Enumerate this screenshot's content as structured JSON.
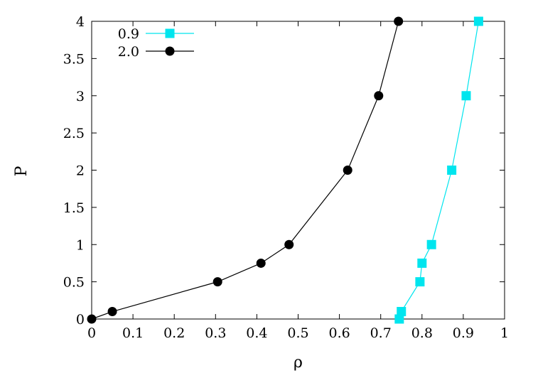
{
  "chart_data": {
    "type": "line",
    "xlabel": "ρ",
    "ylabel": "P",
    "xlim": [
      0,
      1
    ],
    "ylim": [
      0,
      4
    ],
    "x_ticks": [
      "0",
      "0.1",
      "0.2",
      "0.3",
      "0.4",
      "0.5",
      "0.6",
      "0.7",
      "0.8",
      "0.9",
      "1"
    ],
    "y_ticks": [
      "0",
      "0.5",
      "1",
      "1.5",
      "2",
      "2.5",
      "3",
      "3.5",
      "4"
    ],
    "grid": false,
    "legend_position": "top-left",
    "series": [
      {
        "name": "0.9",
        "color": "#00e5ee",
        "marker": "square",
        "x": [
          0.745,
          0.75,
          0.795,
          0.8,
          0.823,
          0.872,
          0.907,
          0.937
        ],
        "y": [
          0.0,
          0.1,
          0.5,
          0.75,
          1.0,
          2.0,
          3.0,
          4.0
        ]
      },
      {
        "name": "2.0",
        "color": "#000000",
        "marker": "circle",
        "x": [
          0.0,
          0.05,
          0.305,
          0.41,
          0.478,
          0.62,
          0.695,
          0.743
        ],
        "y": [
          0.0,
          0.1,
          0.5,
          0.75,
          1.0,
          2.0,
          3.0,
          4.0
        ]
      }
    ]
  }
}
